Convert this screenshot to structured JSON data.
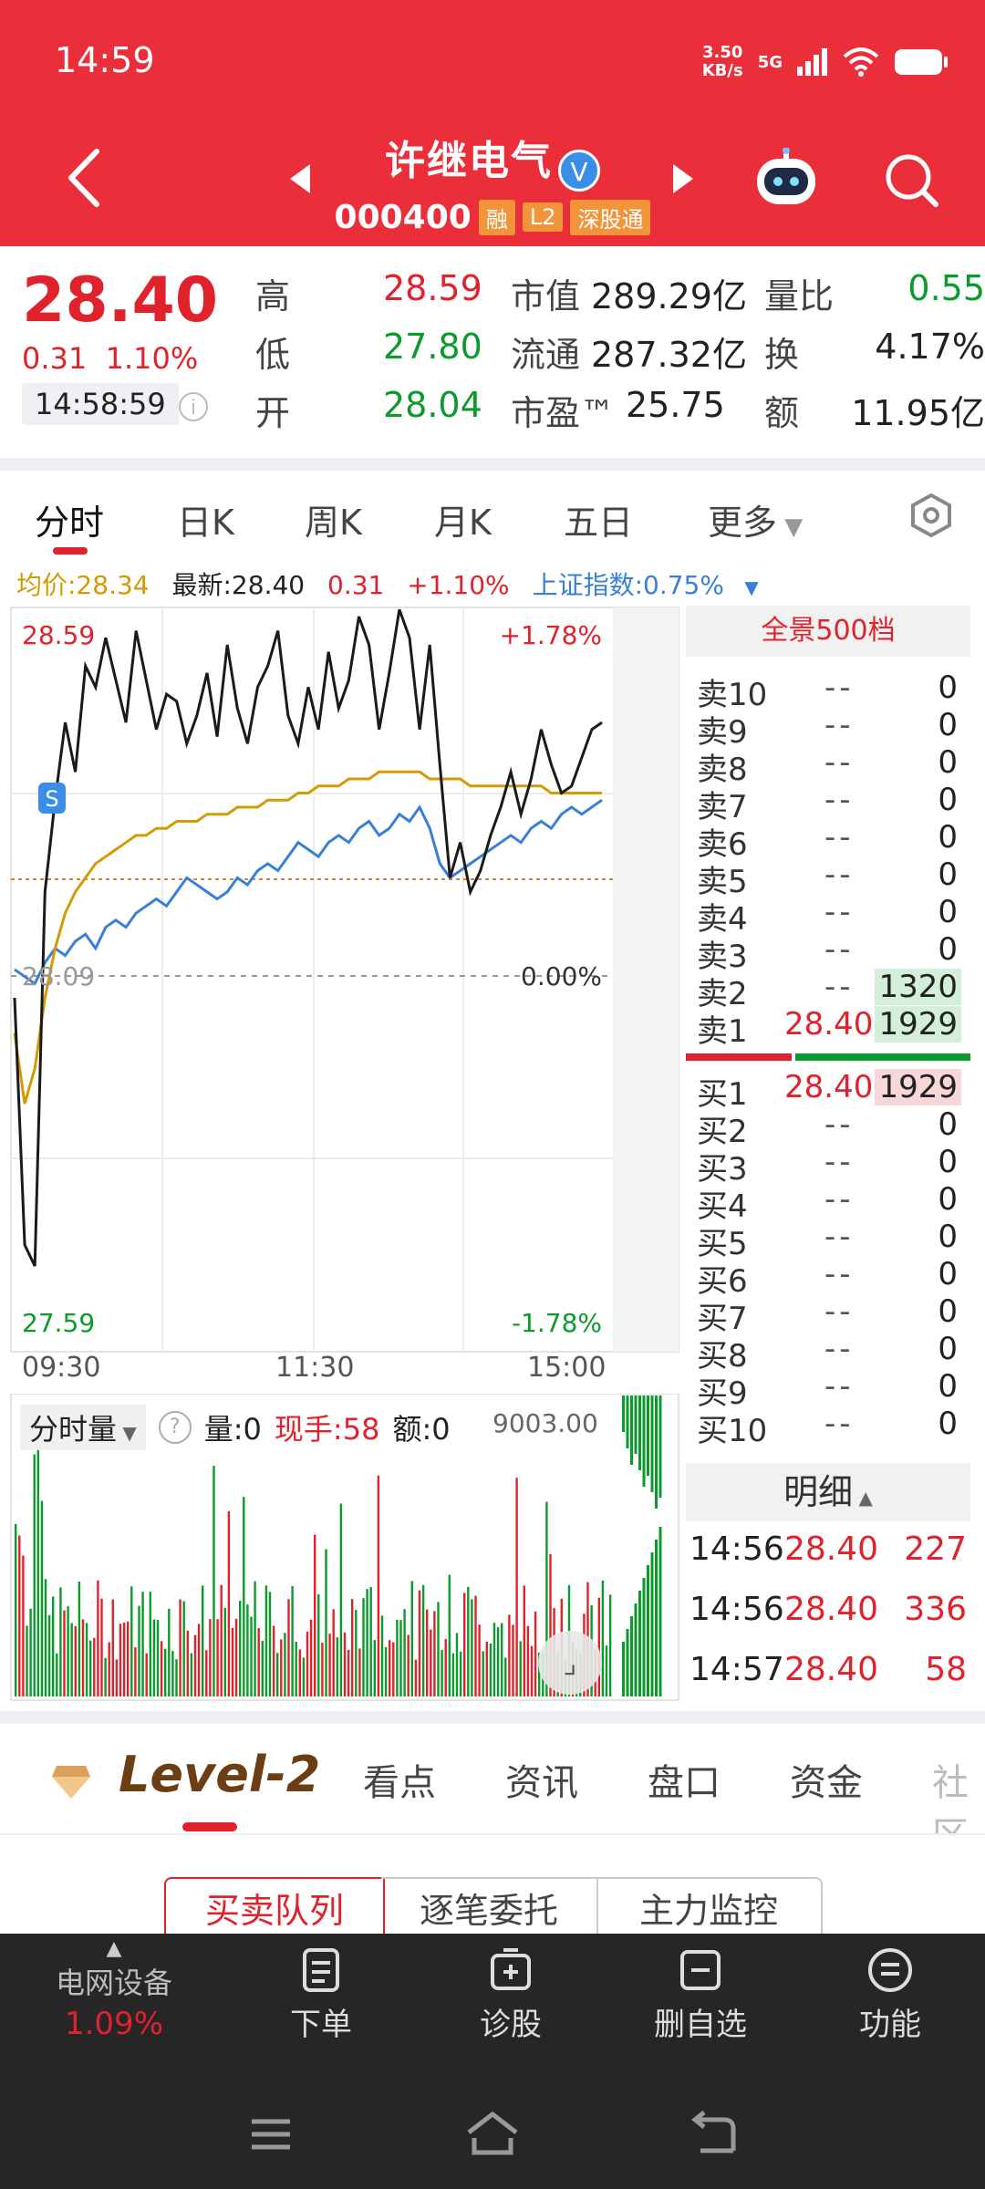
{
  "status_bar": {
    "time": "14:59",
    "net_speed_value": "3.50",
    "net_speed_unit": "KB/s",
    "net_type": "5G"
  },
  "header": {
    "title": "许继电气",
    "verified": "V",
    "code": "000400",
    "tags": [
      "融",
      "L2",
      "深股通"
    ]
  },
  "quote": {
    "price": "28.40",
    "change": "0.31",
    "change_pct": "1.10%",
    "time": "14:58:59",
    "rows": [
      {
        "l1": "高",
        "v1": "28.59",
        "l2": "市值",
        "v2": "289.29亿",
        "l3": "量比",
        "v3": "0.55"
      },
      {
        "l1": "低",
        "v1": "27.80",
        "l2": "流通",
        "v2": "287.32亿",
        "l3": "换",
        "v3": "4.17%"
      },
      {
        "l1": "开",
        "v1": "28.04",
        "l2": "市盈™",
        "v2": "25.75",
        "l3": "额",
        "v3": "11.95亿"
      }
    ]
  },
  "tabs": {
    "items": [
      "分时",
      "日K",
      "周K",
      "月K",
      "五日",
      "更多"
    ]
  },
  "summary": {
    "avg": "均价:28.34",
    "latest": "最新:28.40",
    "chg": "0.31",
    "pct": "+1.10%",
    "index": "上证指数:0.75%"
  },
  "chart_data": {
    "type": "line",
    "x_labels": [
      "09:30",
      "11:30",
      "15:00"
    ],
    "y_high": "28.59",
    "y_low": "27.59",
    "y_prev": "28.09",
    "pct_high": "+1.78%",
    "pct_low": "-1.78%",
    "pct_zero": "0.00%",
    "price_series": [
      28.05,
      27.7,
      27.67,
      28.2,
      28.33,
      28.44,
      28.37,
      28.52,
      28.49,
      28.56,
      28.5,
      28.44,
      28.57,
      28.5,
      28.43,
      28.48,
      28.47,
      28.41,
      28.45,
      28.51,
      28.42,
      28.55,
      28.46,
      28.41,
      28.49,
      28.52,
      28.57,
      28.45,
      28.41,
      28.49,
      28.43,
      28.54,
      28.46,
      28.5,
      28.59,
      28.55,
      28.43,
      28.51,
      28.6,
      28.56,
      28.43,
      28.55,
      28.38,
      28.22,
      28.27,
      28.2,
      28.23,
      28.28,
      28.32,
      28.37,
      28.31,
      28.36,
      28.43,
      28.38,
      28.34,
      28.35,
      28.39,
      28.43,
      28.44
    ],
    "avg_series": [
      28.0,
      27.9,
      27.95,
      28.05,
      28.12,
      28.17,
      28.2,
      28.22,
      28.24,
      28.25,
      28.26,
      28.27,
      28.28,
      28.28,
      28.29,
      28.29,
      28.3,
      28.3,
      28.3,
      28.31,
      28.31,
      28.31,
      28.32,
      28.32,
      28.32,
      28.33,
      28.33,
      28.33,
      28.34,
      28.34,
      28.35,
      28.35,
      28.35,
      28.36,
      28.36,
      28.36,
      28.37,
      28.37,
      28.37,
      28.37,
      28.37,
      28.36,
      28.36,
      28.36,
      28.36,
      28.35,
      28.35,
      28.35,
      28.35,
      28.35,
      28.35,
      28.35,
      28.35,
      28.34,
      28.34,
      28.34,
      28.34,
      28.34,
      28.34
    ],
    "index_series": [
      28.09,
      28.08,
      28.07,
      28.1,
      28.12,
      28.11,
      28.13,
      28.14,
      28.12,
      28.15,
      28.16,
      28.15,
      28.17,
      28.18,
      28.19,
      28.18,
      28.2,
      28.22,
      28.21,
      28.2,
      28.19,
      28.2,
      28.22,
      28.21,
      28.23,
      28.24,
      28.23,
      28.25,
      28.27,
      28.26,
      28.25,
      28.27,
      28.28,
      28.27,
      28.29,
      28.3,
      28.28,
      28.29,
      28.31,
      28.3,
      28.32,
      28.29,
      28.24,
      28.22,
      28.23,
      28.24,
      28.25,
      28.26,
      28.27,
      28.28,
      28.27,
      28.29,
      28.3,
      28.29,
      28.31,
      28.32,
      28.31,
      28.32,
      28.33
    ]
  },
  "volume": {
    "label": "分时量",
    "vol": "量:0",
    "now": "现手:58",
    "amt": "额:0",
    "max": "9003.00"
  },
  "order_book": {
    "title": "全景500档",
    "asks": [
      {
        "label": "卖10",
        "price": "--",
        "vol": "0"
      },
      {
        "label": "卖9",
        "price": "--",
        "vol": "0"
      },
      {
        "label": "卖8",
        "price": "--",
        "vol": "0"
      },
      {
        "label": "卖7",
        "price": "--",
        "vol": "0"
      },
      {
        "label": "卖6",
        "price": "--",
        "vol": "0"
      },
      {
        "label": "卖5",
        "price": "--",
        "vol": "0"
      },
      {
        "label": "卖4",
        "price": "--",
        "vol": "0"
      },
      {
        "label": "卖3",
        "price": "--",
        "vol": "0"
      },
      {
        "label": "卖2",
        "price": "--",
        "vol": "1320"
      },
      {
        "label": "卖1",
        "price": "28.40",
        "vol": "1929"
      }
    ],
    "bids": [
      {
        "label": "买1",
        "price": "28.40",
        "vol": "1929"
      },
      {
        "label": "买2",
        "price": "--",
        "vol": "0"
      },
      {
        "label": "买3",
        "price": "--",
        "vol": "0"
      },
      {
        "label": "买4",
        "price": "--",
        "vol": "0"
      },
      {
        "label": "买5",
        "price": "--",
        "vol": "0"
      },
      {
        "label": "买6",
        "price": "--",
        "vol": "0"
      },
      {
        "label": "买7",
        "price": "--",
        "vol": "0"
      },
      {
        "label": "买8",
        "price": "--",
        "vol": "0"
      },
      {
        "label": "买9",
        "price": "--",
        "vol": "0"
      },
      {
        "label": "买10",
        "price": "--",
        "vol": "0"
      }
    ]
  },
  "detail": {
    "title": "明细",
    "rows": [
      {
        "time": "14:56",
        "price": "28.40",
        "vol": "227"
      },
      {
        "time": "14:56",
        "price": "28.40",
        "vol": "336"
      },
      {
        "time": "14:57",
        "price": "28.40",
        "vol": "58"
      }
    ]
  },
  "level2": {
    "brand": "Level-2",
    "tabs": [
      "看点",
      "资讯",
      "盘口",
      "资金",
      "社区"
    ]
  },
  "subtabs": {
    "items": [
      "买卖队列",
      "逐笔委托",
      "主力监控"
    ]
  },
  "bottom_nav": {
    "sector": "电网设备",
    "sector_pct": "1.09%",
    "items": [
      "下单",
      "诊股",
      "删自选",
      "功能"
    ]
  },
  "colors": {
    "header": "#ea2f3b",
    "up": "#e0222d",
    "down": "#0b9a2c",
    "avg": "#d49a06",
    "index": "#3a7fd6"
  }
}
